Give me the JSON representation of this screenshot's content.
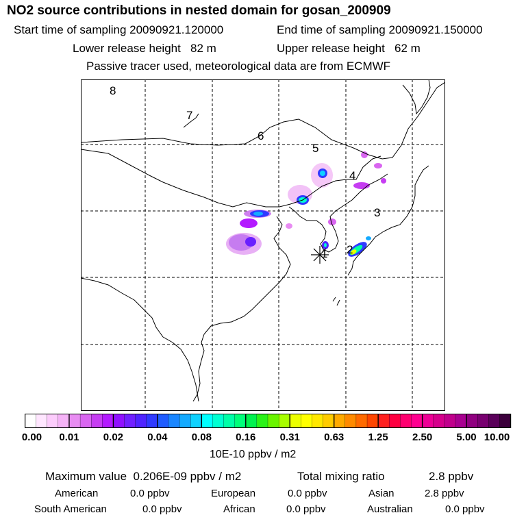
{
  "title": "NO2 source contributions in nested domain for gosan_200909",
  "header": {
    "start_label": "Start time of sampling",
    "start_value": "20090921.120000",
    "end_label": "End time of sampling",
    "end_value": "20090921.150000",
    "lower_label": "Lower release height",
    "lower_value": "82 m",
    "upper_label": "Upper release height",
    "upper_value": "62 m",
    "note": "Passive tracer used, meteorological data are from ECMWF"
  },
  "map": {
    "region_labels": [
      "1",
      "2",
      "3",
      "4",
      "5",
      "6",
      "7",
      "8"
    ],
    "receptor_marker": "asterisk-icon"
  },
  "colorbar": {
    "tick_labels": [
      "0.00",
      "0.01",
      "0.02",
      "0.04",
      "0.08",
      "0.16",
      "0.31",
      "0.63",
      "1.25",
      "2.50",
      "5.00",
      "10.00"
    ],
    "colors": [
      "#ffffff",
      "#ffe6ff",
      "#fcccfc",
      "#f5b3f7",
      "#e88cf2",
      "#d966f0",
      "#c63df2",
      "#b31aff",
      "#9010ff",
      "#7020ff",
      "#4f24ff",
      "#2f3aff",
      "#1f5cff",
      "#1a86ff",
      "#14aaff",
      "#0fd2ff",
      "#00ffff",
      "#00ffd2",
      "#00ffa8",
      "#00ff7a",
      "#00f24f",
      "#2af218",
      "#6af400",
      "#a8ff00",
      "#ecff00",
      "#ffff00",
      "#ffe800",
      "#ffcc00",
      "#ffaa00",
      "#ff8a00",
      "#ff6a00",
      "#ff4500",
      "#ff2020",
      "#ff0040",
      "#ff0070",
      "#ff0090",
      "#ee0096",
      "#d6008c",
      "#c0008c",
      "#a80090",
      "#900080",
      "#780070",
      "#5a005a",
      "#3c003c"
    ],
    "units": "10E-10 ppbv / m2"
  },
  "summary": {
    "max_label": "Maximum value",
    "max_value": "0.206E-09 ppbv / m2",
    "total_label": "Total mixing ratio",
    "total_value": "2.8 ppbv"
  },
  "regions": [
    {
      "name": "American",
      "value": "0.0 ppbv"
    },
    {
      "name": "European",
      "value": "0.0 ppbv"
    },
    {
      "name": "Asian",
      "value": "2.8 ppbv"
    },
    {
      "name": "South American",
      "value": "0.0 ppbv"
    },
    {
      "name": "African",
      "value": "0.0 ppbv"
    },
    {
      "name": "Australian",
      "value": "0.0 ppbv"
    }
  ]
}
